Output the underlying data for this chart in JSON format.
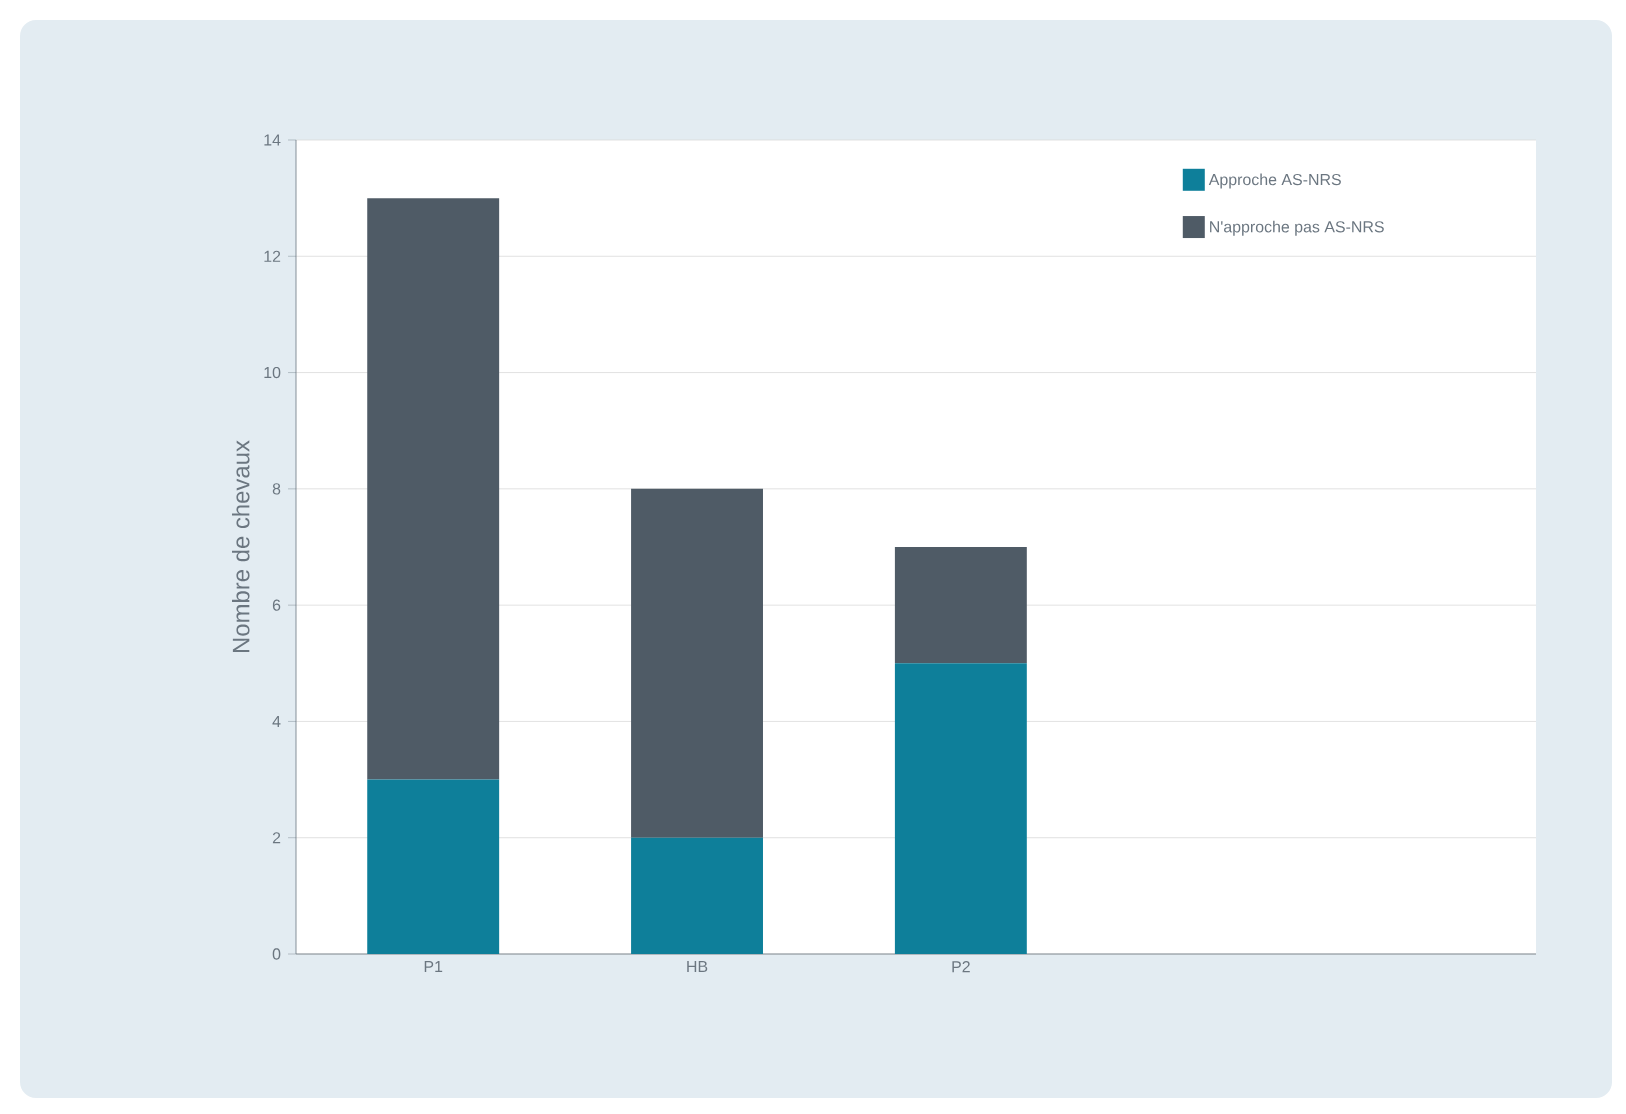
{
  "chart_data": {
    "type": "bar",
    "stacked": true,
    "ylabel": "Nombre de chevaux",
    "categories": [
      "P1",
      "HB",
      "P2"
    ],
    "series": [
      {
        "name": "Approche AS-NRS",
        "color": "#0e7f9a",
        "values": [
          3,
          2,
          5
        ]
      },
      {
        "name": "N'approche pas AS-NRS",
        "color": "#4f5b66",
        "values": [
          10,
          6,
          2
        ]
      }
    ],
    "ylim": [
      0,
      14
    ],
    "yticks": [
      0,
      2,
      4,
      6,
      8,
      10,
      12,
      14
    ],
    "grid": "y",
    "legend": "top right"
  }
}
